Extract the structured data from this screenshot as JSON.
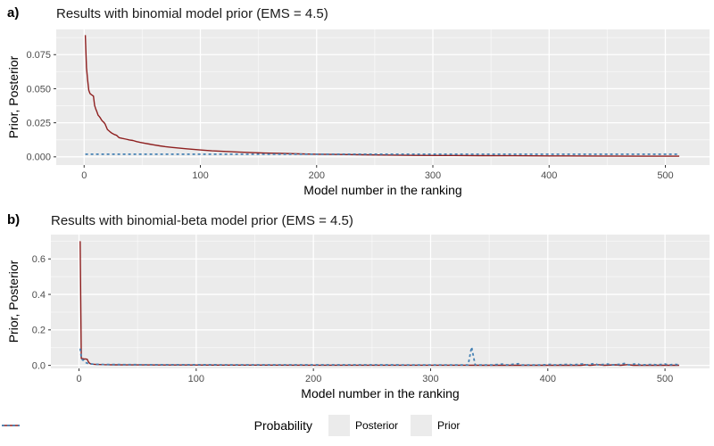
{
  "colors": {
    "panel_bg": "#EBEBEB",
    "grid_major": "#FFFFFF",
    "grid_minor": "rgba(255,255,255,0.6)",
    "axis_text": "#4D4D4D",
    "tick_mark": "#333333",
    "posterior": "#8E1F1F",
    "prior": "#4682B4"
  },
  "legend": {
    "title": "Probability",
    "items": [
      {
        "label": "Posterior",
        "style": "solid",
        "color_key": "posterior"
      },
      {
        "label": "Prior",
        "style": "dashed",
        "color_key": "prior"
      }
    ],
    "position": "bottom"
  },
  "chart_data": [
    {
      "id": "a",
      "type": "line",
      "panel_label": "a)",
      "title": "Results with binomial model prior (EMS = 4.5)",
      "xlabel": "Model number in the ranking",
      "ylabel": "Prior, Posterior",
      "xlim": [
        -24,
        538
      ],
      "ylim": [
        -0.006,
        0.0935
      ],
      "x_ticks": [
        0,
        100,
        200,
        300,
        400,
        500
      ],
      "x_tick_labels": [
        "0",
        "100",
        "200",
        "300",
        "400",
        "500"
      ],
      "x_minor": [
        50,
        150,
        250,
        350,
        450
      ],
      "y_ticks": [
        0,
        0.025,
        0.05,
        0.075
      ],
      "y_tick_labels": [
        "0.000",
        "0.025",
        "0.050",
        "0.075"
      ],
      "y_minor": [
        0.0125,
        0.0375,
        0.0625,
        0.0875
      ],
      "grid": true,
      "series": [
        {
          "name": "Posterior",
          "style": "solid",
          "color_key": "posterior",
          "points": [
            [
              1,
              0.0893
            ],
            [
              2,
              0.0655
            ],
            [
              3,
              0.0563
            ],
            [
              4,
              0.0488
            ],
            [
              5,
              0.0465
            ],
            [
              6,
              0.0458
            ],
            [
              7,
              0.0452
            ],
            [
              8,
              0.0446
            ],
            [
              9,
              0.0377
            ],
            [
              10,
              0.0351
            ],
            [
              11,
              0.033
            ],
            [
              12,
              0.0306
            ],
            [
              13,
              0.0296
            ],
            [
              14,
              0.0285
            ],
            [
              15,
              0.027
            ],
            [
              16,
              0.026
            ],
            [
              17,
              0.0253
            ],
            [
              18,
              0.0242
            ],
            [
              20,
              0.0201
            ],
            [
              22,
              0.0186
            ],
            [
              24,
              0.0173
            ],
            [
              26,
              0.0164
            ],
            [
              28,
              0.0158
            ],
            [
              30,
              0.0141
            ],
            [
              33,
              0.0135
            ],
            [
              36,
              0.013
            ],
            [
              39,
              0.0124
            ],
            [
              42,
              0.012
            ],
            [
              45,
              0.0112
            ],
            [
              48,
              0.0106
            ],
            [
              52,
              0.01
            ],
            [
              56,
              0.0094
            ],
            [
              60,
              0.0088
            ],
            [
              65,
              0.0081
            ],
            [
              70,
              0.0075
            ],
            [
              76,
              0.0069
            ],
            [
              82,
              0.0064
            ],
            [
              88,
              0.0059
            ],
            [
              95,
              0.0054
            ],
            [
              102,
              0.0049
            ],
            [
              110,
              0.0044
            ],
            [
              120,
              0.004
            ],
            [
              130,
              0.0036
            ],
            [
              142,
              0.0032
            ],
            [
              155,
              0.0028
            ],
            [
              170,
              0.0025
            ],
            [
              185,
              0.0022
            ],
            [
              200,
              0.0019
            ],
            [
              220,
              0.0017
            ],
            [
              240,
              0.0015
            ],
            [
              260,
              0.0013
            ],
            [
              285,
              0.0011
            ],
            [
              310,
              0.001
            ],
            [
              340,
              0.0009
            ],
            [
              370,
              0.0008
            ],
            [
              400,
              0.0007
            ],
            [
              440,
              0.0006
            ],
            [
              480,
              0.0005
            ],
            [
              512,
              0.0005
            ]
          ]
        },
        {
          "name": "Prior",
          "style": "dashed",
          "color_key": "prior",
          "points": [
            [
              1,
              0.00195
            ],
            [
              512,
              0.00195
            ]
          ]
        }
      ]
    },
    {
      "id": "b",
      "type": "line",
      "panel_label": "b)",
      "title": "Results with binomial-beta model prior (EMS = 4.5)",
      "xlabel": "Model number in the ranking",
      "ylabel": "Prior, Posterior",
      "xlim": [
        -24,
        538
      ],
      "ylim": [
        -0.017,
        0.737
      ],
      "x_ticks": [
        0,
        100,
        200,
        300,
        400,
        500
      ],
      "x_tick_labels": [
        "0",
        "100",
        "200",
        "300",
        "400",
        "500"
      ],
      "x_minor": [
        50,
        150,
        250,
        350,
        450
      ],
      "y_ticks": [
        0,
        0.2,
        0.4,
        0.6
      ],
      "y_tick_labels": [
        "0.0",
        "0.2",
        "0.4",
        "0.6"
      ],
      "y_minor": [
        0.1,
        0.3,
        0.5,
        0.7
      ],
      "grid": true,
      "series": [
        {
          "name": "Posterior",
          "style": "solid",
          "color_key": "posterior",
          "points": [
            [
              1,
              0.7
            ],
            [
              2,
              0.0395
            ],
            [
              3,
              0.038
            ],
            [
              4,
              0.037
            ],
            [
              5,
              0.0365
            ],
            [
              6,
              0.036
            ],
            [
              7,
              0.0345
            ],
            [
              8,
              0.02
            ],
            [
              9,
              0.012
            ],
            [
              10,
              0.0085
            ],
            [
              12,
              0.0065
            ],
            [
              14,
              0.0055
            ],
            [
              16,
              0.005
            ],
            [
              20,
              0.0042
            ],
            [
              25,
              0.0036
            ],
            [
              30,
              0.0032
            ],
            [
              40,
              0.0028
            ],
            [
              50,
              0.0025
            ],
            [
              70,
              0.0022
            ],
            [
              90,
              0.0019
            ],
            [
              120,
              0.0016
            ],
            [
              150,
              0.0014
            ],
            [
              200,
              0.0012
            ],
            [
              250,
              0.001
            ],
            [
              300,
              0.0009
            ],
            [
              350,
              0.0008
            ],
            [
              400,
              0.0007
            ],
            [
              428,
              0.0007
            ],
            [
              432,
              0.003
            ],
            [
              436,
              0.0007
            ],
            [
              443,
              0.004
            ],
            [
              448,
              0.0008
            ],
            [
              458,
              0.003
            ],
            [
              462,
              0.0008
            ],
            [
              468,
              0.0042
            ],
            [
              473,
              0.0008
            ],
            [
              480,
              0.0007
            ],
            [
              500,
              0.0006
            ],
            [
              512,
              0.0006
            ]
          ]
        },
        {
          "name": "Prior",
          "style": "dashed",
          "color_key": "prior",
          "points": [
            [
              1,
              0.095
            ],
            [
              2,
              0.047
            ],
            [
              3,
              0.03
            ],
            [
              4,
              0.029
            ],
            [
              5,
              0.02
            ],
            [
              6,
              0.015
            ],
            [
              7,
              0.012
            ],
            [
              8,
              0.01
            ],
            [
              10,
              0.008
            ],
            [
              13,
              0.0065
            ],
            [
              16,
              0.0058
            ],
            [
              20,
              0.0052
            ],
            [
              26,
              0.0048
            ],
            [
              34,
              0.0044
            ],
            [
              45,
              0.0041
            ],
            [
              60,
              0.0038
            ],
            [
              80,
              0.0036
            ],
            [
              100,
              0.0034
            ],
            [
              130,
              0.0032
            ],
            [
              160,
              0.0031
            ],
            [
              200,
              0.003
            ],
            [
              240,
              0.0029
            ],
            [
              280,
              0.0028
            ],
            [
              320,
              0.0027
            ],
            [
              332,
              0.0028
            ],
            [
              335,
              0.103
            ],
            [
              338,
              0.0028
            ],
            [
              352,
              0.0027
            ],
            [
              362,
              0.007
            ],
            [
              365,
              0.0027
            ],
            [
              375,
              0.009
            ],
            [
              378,
              0.0026
            ],
            [
              395,
              0.0026
            ],
            [
              403,
              0.0055
            ],
            [
              406,
              0.0026
            ],
            [
              418,
              0.006
            ],
            [
              421,
              0.0026
            ],
            [
              430,
              0.008
            ],
            [
              433,
              0.0026
            ],
            [
              440,
              0.01
            ],
            [
              443,
              0.0026
            ],
            [
              451,
              0.0075
            ],
            [
              454,
              0.0026
            ],
            [
              462,
              0.006
            ],
            [
              466,
              0.0115
            ],
            [
              469,
              0.0026
            ],
            [
              476,
              0.0095
            ],
            [
              479,
              0.0026
            ],
            [
              490,
              0.005
            ],
            [
              493,
              0.0026
            ],
            [
              500,
              0.0075
            ],
            [
              503,
              0.0026
            ],
            [
              508,
              0.0055
            ],
            [
              512,
              0.004
            ]
          ]
        }
      ]
    }
  ]
}
